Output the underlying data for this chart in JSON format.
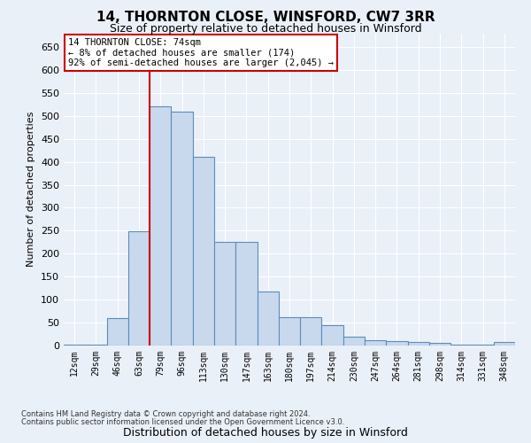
{
  "title_line1": "14, THORNTON CLOSE, WINSFORD, CW7 3RR",
  "title_line2": "Size of property relative to detached houses in Winsford",
  "xlabel": "Distribution of detached houses by size in Winsford",
  "ylabel": "Number of detached properties",
  "footnote1": "Contains HM Land Registry data © Crown copyright and database right 2024.",
  "footnote2": "Contains public sector information licensed under the Open Government Licence v3.0.",
  "annotation_title": "14 THORNTON CLOSE: 74sqm",
  "annotation_line1": "← 8% of detached houses are smaller (174)",
  "annotation_line2": "92% of semi-detached houses are larger (2,045) →",
  "bar_color": "#c9d9ed",
  "bar_edge_color": "#5b8db8",
  "vline_color": "#cc0000",
  "vline_x_index": 4,
  "categories": [
    "12sqm",
    "29sqm",
    "46sqm",
    "63sqm",
    "79sqm",
    "96sqm",
    "113sqm",
    "130sqm",
    "147sqm",
    "163sqm",
    "180sqm",
    "197sqm",
    "214sqm",
    "230sqm",
    "247sqm",
    "264sqm",
    "281sqm",
    "298sqm",
    "314sqm",
    "331sqm",
    "348sqm"
  ],
  "values": [
    2,
    2,
    60,
    248,
    520,
    510,
    410,
    226,
    226,
    118,
    62,
    62,
    45,
    20,
    12,
    10,
    7,
    5,
    2,
    2,
    7
  ],
  "ylim": [
    0,
    680
  ],
  "yticks": [
    0,
    50,
    100,
    150,
    200,
    250,
    300,
    350,
    400,
    450,
    500,
    550,
    600,
    650
  ],
  "bg_color": "#eaf0f8",
  "plot_bg_color": "#eaf0f8",
  "grid_color": "#ffffff",
  "annotation_box_facecolor": "#ffffff",
  "annotation_box_edgecolor": "#cc0000"
}
